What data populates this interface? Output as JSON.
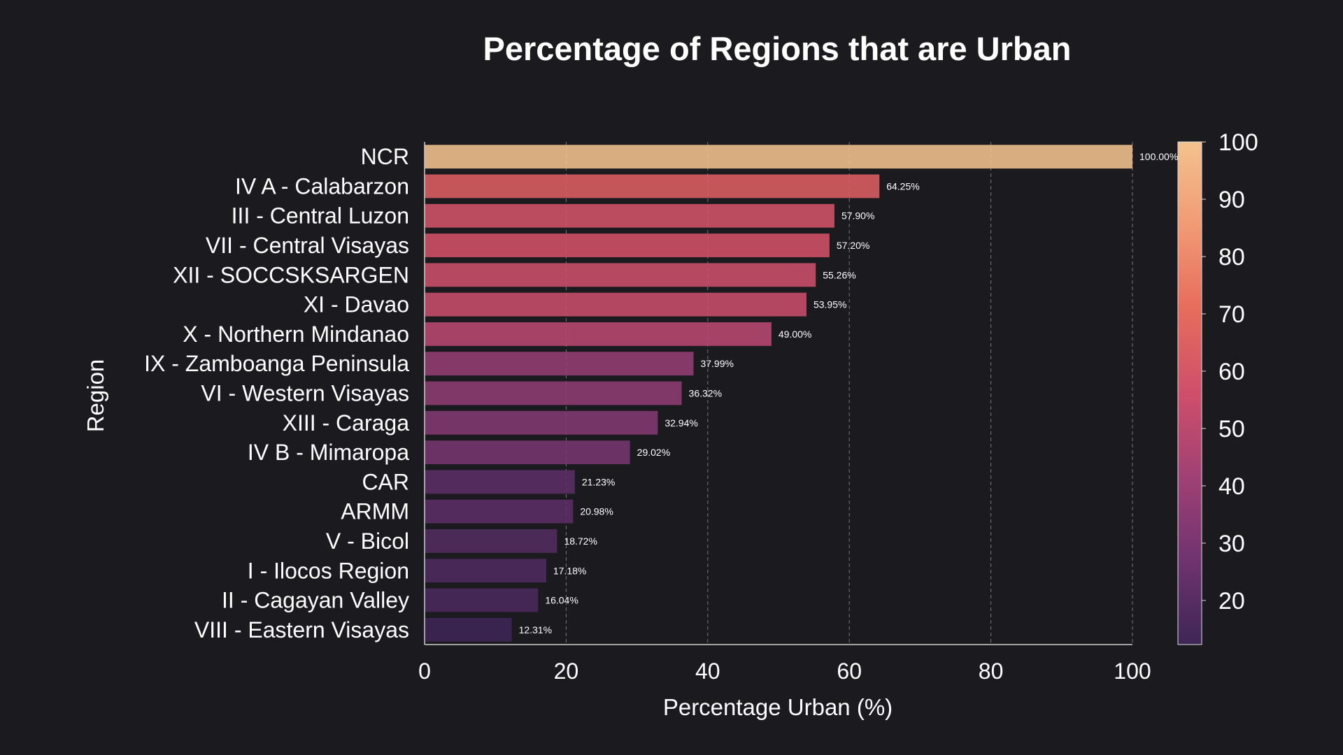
{
  "chart_data": {
    "type": "bar",
    "orientation": "horizontal",
    "title": "Percentage of Regions that are Urban",
    "xlabel": "Percentage Urban (%)",
    "ylabel": "Region",
    "xlim": [
      0,
      100
    ],
    "xticks": [
      0,
      20,
      40,
      60,
      80,
      100
    ],
    "grid": "vertical dashed",
    "categories": [
      "NCR",
      "IV A - Calabarzon",
      "III - Central Luzon",
      "VII - Central Visayas",
      "XII - SOCCSKSARGEN",
      "XI - Davao",
      "X - Northern Mindanao",
      "IX - Zamboanga Peninsula",
      "VI - Western Visayas",
      "XIII - Caraga",
      "IV B - Mimaropa",
      "CAR",
      "ARMM",
      "V - Bicol",
      "I - Ilocos Region",
      "II - Cagayan Valley",
      "VIII - Eastern Visayas"
    ],
    "values": [
      100.0,
      64.25,
      57.9,
      57.2,
      55.26,
      53.95,
      49.0,
      37.99,
      36.32,
      32.94,
      29.02,
      21.23,
      20.98,
      18.72,
      17.18,
      16.04,
      12.31
    ],
    "value_labels": [
      "100.00%",
      "64.25%",
      "57.90%",
      "57.20%",
      "55.26%",
      "53.95%",
      "49.00%",
      "37.99%",
      "36.32%",
      "32.94%",
      "29.02%",
      "21.23%",
      "20.98%",
      "18.72%",
      "17.18%",
      "16.04%",
      "12.31%"
    ],
    "colorbar": {
      "range": [
        12.31,
        100
      ],
      "ticks": [
        20,
        30,
        40,
        50,
        60,
        70,
        80,
        90,
        100
      ],
      "colormap": "flare",
      "colors": [
        "#3e2656",
        "#6f3370",
        "#a04174",
        "#cf4f6a",
        "#e66c5c",
        "#f19a74",
        "#f3c28d"
      ]
    }
  },
  "colors": {
    "background": "#1b1a1e",
    "text": "#ffffff",
    "grid": "#777777"
  }
}
